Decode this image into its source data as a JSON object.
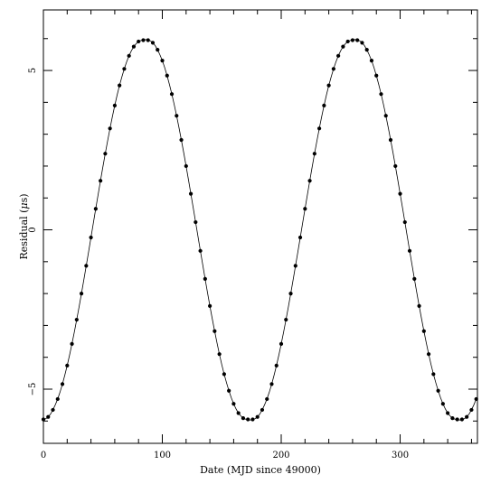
{
  "chart_data": {
    "type": "scatter",
    "title": "",
    "xlabel": "Date (MJD since 49000)",
    "ylabel": "Residual (μs)",
    "ylabel_parts": {
      "prefix": "Residual (",
      "symbol": "μ",
      "suffix": "s)"
    },
    "xlim": [
      0,
      365
    ],
    "ylim": [
      -6.7,
      6.9
    ],
    "x_ticks": [
      {
        "value": 0,
        "label": "0"
      },
      {
        "value": 100,
        "label": "100"
      },
      {
        "value": 200,
        "label": "200"
      },
      {
        "value": 300,
        "label": "300"
      }
    ],
    "y_ticks": [
      {
        "value": -5,
        "label": "−5"
      },
      {
        "value": 0,
        "label": "0"
      },
      {
        "value": 5,
        "label": "5"
      }
    ],
    "grid": false,
    "legend": "none",
    "colors": {
      "points": "#000000",
      "line": "#000000",
      "frame": "#000000"
    },
    "series": [
      {
        "points": [
          [
            0,
            -5.95
          ],
          [
            4,
            -5.87
          ],
          [
            8,
            -5.65
          ],
          [
            12,
            -5.31
          ],
          [
            16,
            -4.84
          ],
          [
            20,
            -4.26
          ],
          [
            24,
            -3.58
          ],
          [
            28,
            -2.82
          ],
          [
            32,
            -2.0
          ],
          [
            36,
            -1.13
          ],
          [
            40,
            -0.24
          ],
          [
            44,
            0.66
          ],
          [
            48,
            1.54
          ],
          [
            52,
            2.39
          ],
          [
            56,
            3.18
          ],
          [
            60,
            3.9
          ],
          [
            64,
            4.53
          ],
          [
            68,
            5.05
          ],
          [
            72,
            5.46
          ],
          [
            76,
            5.75
          ],
          [
            80,
            5.91
          ],
          [
            84,
            5.95
          ],
          [
            88,
            5.95
          ],
          [
            92,
            5.87
          ],
          [
            96,
            5.65
          ],
          [
            100,
            5.31
          ],
          [
            104,
            4.84
          ],
          [
            108,
            4.26
          ],
          [
            112,
            3.58
          ],
          [
            116,
            2.82
          ],
          [
            120,
            2.0
          ],
          [
            124,
            1.13
          ],
          [
            128,
            0.24
          ],
          [
            132,
            -0.66
          ],
          [
            136,
            -1.54
          ],
          [
            140,
            -2.39
          ],
          [
            144,
            -3.18
          ],
          [
            148,
            -3.9
          ],
          [
            152,
            -4.53
          ],
          [
            156,
            -5.05
          ],
          [
            160,
            -5.46
          ],
          [
            164,
            -5.75
          ],
          [
            168,
            -5.91
          ],
          [
            172,
            -5.95
          ],
          [
            176,
            -5.95
          ],
          [
            180,
            -5.87
          ],
          [
            184,
            -5.65
          ],
          [
            188,
            -5.31
          ],
          [
            192,
            -4.84
          ],
          [
            196,
            -4.26
          ],
          [
            200,
            -3.58
          ],
          [
            204,
            -2.82
          ],
          [
            208,
            -2.0
          ],
          [
            212,
            -1.13
          ],
          [
            216,
            -0.24
          ],
          [
            220,
            0.66
          ],
          [
            224,
            1.54
          ],
          [
            228,
            2.39
          ],
          [
            232,
            3.18
          ],
          [
            236,
            3.9
          ],
          [
            240,
            4.53
          ],
          [
            244,
            5.05
          ],
          [
            248,
            5.46
          ],
          [
            252,
            5.75
          ],
          [
            256,
            5.91
          ],
          [
            260,
            5.95
          ],
          [
            264,
            5.95
          ],
          [
            268,
            5.87
          ],
          [
            272,
            5.65
          ],
          [
            276,
            5.31
          ],
          [
            280,
            4.84
          ],
          [
            284,
            4.26
          ],
          [
            288,
            3.58
          ],
          [
            292,
            2.82
          ],
          [
            296,
            2.0
          ],
          [
            300,
            1.13
          ],
          [
            304,
            0.24
          ],
          [
            308,
            -0.66
          ],
          [
            312,
            -1.54
          ],
          [
            316,
            -2.39
          ],
          [
            320,
            -3.18
          ],
          [
            324,
            -3.9
          ],
          [
            328,
            -4.53
          ],
          [
            332,
            -5.05
          ],
          [
            336,
            -5.46
          ],
          [
            340,
            -5.75
          ],
          [
            344,
            -5.91
          ],
          [
            348,
            -5.95
          ],
          [
            352,
            -5.95
          ],
          [
            356,
            -5.87
          ],
          [
            360,
            -5.65
          ],
          [
            364,
            -5.31
          ]
        ],
        "curve": [
          [
            0,
            -5.95
          ],
          [
            2,
            -5.93
          ],
          [
            4,
            -5.87
          ],
          [
            6,
            -5.78
          ],
          [
            8,
            -5.65
          ],
          [
            10,
            -5.49
          ],
          [
            12,
            -5.31
          ],
          [
            14,
            -5.09
          ],
          [
            16,
            -4.84
          ],
          [
            18,
            -4.56
          ],
          [
            20,
            -4.26
          ],
          [
            22,
            -3.93
          ],
          [
            24,
            -3.58
          ],
          [
            26,
            -3.21
          ],
          [
            28,
            -2.82
          ],
          [
            30,
            -2.42
          ],
          [
            32,
            -2.0
          ],
          [
            34,
            -1.57
          ],
          [
            36,
            -1.13
          ],
          [
            38,
            -0.69
          ],
          [
            40,
            -0.24
          ],
          [
            42,
            0.21
          ],
          [
            44,
            0.66
          ],
          [
            46,
            1.1
          ],
          [
            48,
            1.54
          ],
          [
            50,
            1.97
          ],
          [
            52,
            2.39
          ],
          [
            54,
            2.79
          ],
          [
            56,
            3.18
          ],
          [
            58,
            3.55
          ],
          [
            60,
            3.9
          ],
          [
            62,
            4.23
          ],
          [
            64,
            4.53
          ],
          [
            66,
            4.8
          ],
          [
            68,
            5.05
          ],
          [
            70,
            5.27
          ],
          [
            72,
            5.46
          ],
          [
            74,
            5.62
          ],
          [
            76,
            5.75
          ],
          [
            78,
            5.84
          ],
          [
            80,
            5.91
          ],
          [
            82,
            5.94
          ],
          [
            84,
            5.95
          ],
          [
            86,
            5.97
          ],
          [
            88,
            5.95
          ],
          [
            90,
            5.93
          ],
          [
            92,
            5.87
          ],
          [
            94,
            5.78
          ],
          [
            96,
            5.65
          ],
          [
            98,
            5.49
          ],
          [
            100,
            5.31
          ],
          [
            102,
            5.09
          ],
          [
            104,
            4.84
          ],
          [
            106,
            4.56
          ],
          [
            108,
            4.26
          ],
          [
            110,
            3.93
          ],
          [
            112,
            3.58
          ],
          [
            114,
            3.21
          ],
          [
            116,
            2.82
          ],
          [
            118,
            2.42
          ],
          [
            120,
            2.0
          ],
          [
            122,
            1.57
          ],
          [
            124,
            1.13
          ],
          [
            126,
            0.69
          ],
          [
            128,
            0.24
          ],
          [
            130,
            -0.21
          ],
          [
            132,
            -0.66
          ],
          [
            134,
            -1.1
          ],
          [
            136,
            -1.54
          ],
          [
            138,
            -1.97
          ],
          [
            140,
            -2.39
          ],
          [
            142,
            -2.79
          ],
          [
            144,
            -3.18
          ],
          [
            146,
            -3.55
          ],
          [
            148,
            -3.9
          ],
          [
            150,
            -4.23
          ],
          [
            152,
            -4.53
          ],
          [
            154,
            -4.8
          ],
          [
            156,
            -5.05
          ],
          [
            158,
            -5.27
          ],
          [
            160,
            -5.46
          ],
          [
            162,
            -5.62
          ],
          [
            164,
            -5.75
          ],
          [
            166,
            -5.84
          ],
          [
            168,
            -5.91
          ],
          [
            170,
            -5.94
          ],
          [
            172,
            -5.95
          ],
          [
            174,
            -5.97
          ],
          [
            176,
            -5.95
          ],
          [
            178,
            -5.93
          ],
          [
            180,
            -5.87
          ],
          [
            182,
            -5.78
          ],
          [
            184,
            -5.65
          ],
          [
            186,
            -5.49
          ],
          [
            188,
            -5.31
          ],
          [
            190,
            -5.09
          ],
          [
            192,
            -4.84
          ],
          [
            194,
            -4.56
          ],
          [
            196,
            -4.26
          ],
          [
            198,
            -3.93
          ],
          [
            200,
            -3.58
          ],
          [
            202,
            -3.21
          ],
          [
            204,
            -2.82
          ],
          [
            206,
            -2.42
          ],
          [
            208,
            -2.0
          ],
          [
            210,
            -1.57
          ],
          [
            212,
            -1.13
          ],
          [
            214,
            -0.69
          ],
          [
            216,
            -0.24
          ],
          [
            218,
            0.21
          ],
          [
            220,
            0.66
          ],
          [
            222,
            1.1
          ],
          [
            224,
            1.54
          ],
          [
            226,
            1.97
          ],
          [
            228,
            2.39
          ],
          [
            230,
            2.79
          ],
          [
            232,
            3.18
          ],
          [
            234,
            3.55
          ],
          [
            236,
            3.9
          ],
          [
            238,
            4.23
          ],
          [
            240,
            4.53
          ],
          [
            242,
            4.8
          ],
          [
            244,
            5.05
          ],
          [
            246,
            5.27
          ],
          [
            248,
            5.46
          ],
          [
            250,
            5.62
          ],
          [
            252,
            5.75
          ],
          [
            254,
            5.84
          ],
          [
            256,
            5.91
          ],
          [
            258,
            5.94
          ],
          [
            260,
            5.95
          ],
          [
            262,
            5.97
          ],
          [
            264,
            5.95
          ],
          [
            266,
            5.93
          ],
          [
            268,
            5.87
          ],
          [
            270,
            5.78
          ],
          [
            272,
            5.65
          ],
          [
            274,
            5.49
          ],
          [
            276,
            5.31
          ],
          [
            278,
            5.09
          ],
          [
            280,
            4.84
          ],
          [
            282,
            4.56
          ],
          [
            284,
            4.26
          ],
          [
            286,
            3.93
          ],
          [
            288,
            3.58
          ],
          [
            290,
            3.21
          ],
          [
            292,
            2.82
          ],
          [
            294,
            2.42
          ],
          [
            296,
            2.0
          ],
          [
            298,
            1.57
          ],
          [
            300,
            1.13
          ],
          [
            302,
            0.69
          ],
          [
            304,
            0.24
          ],
          [
            306,
            -0.21
          ],
          [
            308,
            -0.66
          ],
          [
            310,
            -1.1
          ],
          [
            312,
            -1.54
          ],
          [
            314,
            -1.97
          ],
          [
            316,
            -2.39
          ],
          [
            318,
            -2.79
          ],
          [
            320,
            -3.18
          ],
          [
            322,
            -3.55
          ],
          [
            324,
            -3.9
          ],
          [
            326,
            -4.23
          ],
          [
            328,
            -4.53
          ],
          [
            330,
            -4.8
          ],
          [
            332,
            -5.05
          ],
          [
            334,
            -5.27
          ],
          [
            336,
            -5.46
          ],
          [
            338,
            -5.62
          ],
          [
            340,
            -5.75
          ],
          [
            342,
            -5.84
          ],
          [
            344,
            -5.91
          ],
          [
            346,
            -5.94
          ],
          [
            348,
            -5.95
          ],
          [
            350,
            -5.97
          ],
          [
            352,
            -5.95
          ],
          [
            354,
            -5.93
          ],
          [
            356,
            -5.87
          ],
          [
            358,
            -5.78
          ],
          [
            360,
            -5.65
          ],
          [
            362,
            -5.49
          ],
          [
            364,
            -5.31
          ]
        ]
      }
    ]
  }
}
